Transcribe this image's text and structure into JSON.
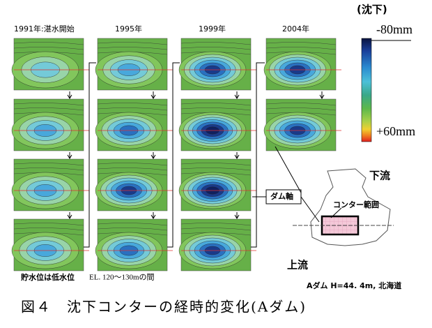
{
  "header": {
    "unit": "(沈下)",
    "scale_top": "-80mm",
    "scale_bottom": "+60mm"
  },
  "columns": [
    "1991年:湛水開始",
    "1995年",
    "1999年",
    "2004年"
  ],
  "labels": {
    "dam_axis": "ダム軸",
    "downstream": "下流",
    "upstream": "上流",
    "contour_range": "コンター範囲"
  },
  "notes": {
    "water_level": "貯水位は低水位",
    "elevation": "EL. 120～130mの間",
    "dam": "Aダム H=44. 4m, 北海道"
  },
  "caption": "図４　沈下コンターの経時的変化(Aダム)"
}
